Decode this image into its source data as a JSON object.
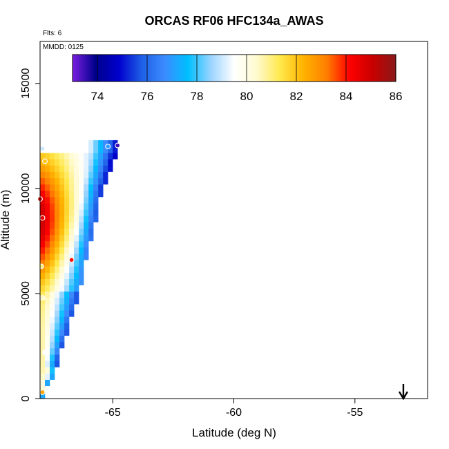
{
  "chart_data": {
    "type": "heatmap",
    "title": "ORCAS RF06 HFC134a_AWAS",
    "annotations": {
      "flights": "Flts: 6",
      "date": "MMDD: 0125"
    },
    "xlabel": "Latitude (deg N)",
    "ylabel": "Altitude (m)",
    "xlim": [
      -68.0,
      -52.0
    ],
    "ylim": [
      0,
      17000
    ],
    "xticks": [
      -65,
      -60,
      -55
    ],
    "xtick_labels": [
      "-65",
      "-60",
      "-55"
    ],
    "yticks": [
      0,
      5000,
      10000,
      15000
    ],
    "ytick_labels": [
      "0",
      "5000",
      "10000",
      "15000"
    ],
    "colorbar": {
      "min": 73,
      "max": 86,
      "ticks": [
        74,
        76,
        78,
        80,
        82,
        84,
        86
      ],
      "tick_labels": [
        "74",
        "76",
        "78",
        "80",
        "82",
        "84",
        "86"
      ],
      "colors": [
        "#7b1fe0",
        "#00008b",
        "#0000cd",
        "#1e5fe6",
        "#3c8cff",
        "#00bfff",
        "#9cd4ff",
        "#ffffff",
        "#fffacd",
        "#ffe84a",
        "#ffb300",
        "#ff7f00",
        "#ff0000",
        "#c80000",
        "#8b1a1a"
      ]
    },
    "grid": false,
    "cell_size": {
      "lat": 0.2,
      "alt": 300
    },
    "field": {
      "description_key": "gridded HFC134a mixing ratio (ppt), lat x altitude",
      "top_altitude": 12100,
      "edge_lat": -68.0,
      "domain_bound": [
        [
          -68.0,
          0
        ],
        [
          -67.4,
          1500
        ],
        [
          -66.6,
          4500
        ],
        [
          -65.5,
          10000
        ],
        [
          -65.0,
          11500
        ],
        [
          -64.8,
          12100
        ]
      ]
    },
    "flight_points": [
      {
        "lat": -67.9,
        "alt": 300,
        "value": 82.5
      },
      {
        "lat": -67.8,
        "alt": 2200,
        "value": 79.5
      },
      {
        "lat": -67.9,
        "alt": 4800,
        "value": 80.5
      },
      {
        "lat": -67.95,
        "alt": 6300,
        "value": 81.0
      },
      {
        "lat": -66.7,
        "alt": 6600,
        "value": 84.0
      },
      {
        "lat": -67.9,
        "alt": 8600,
        "value": 84.5
      },
      {
        "lat": -68.0,
        "alt": 9500,
        "value": 85.0
      },
      {
        "lat": -67.8,
        "alt": 11300,
        "value": 82.0
      },
      {
        "lat": -67.9,
        "alt": 11900,
        "value": 79.0
      },
      {
        "lat": -65.2,
        "alt": 12000,
        "value": 77.0
      },
      {
        "lat": -64.8,
        "alt": 12050,
        "value": 73.5
      }
    ],
    "arrow_marker": {
      "lat": -53.0,
      "direction": "down"
    }
  }
}
